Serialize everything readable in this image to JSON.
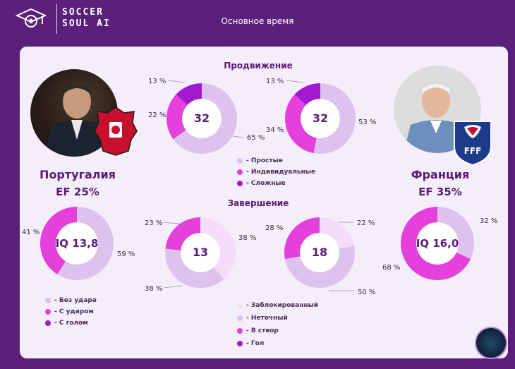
{
  "header": {
    "brand_line1": "SOCCER",
    "brand_line2": "SOUL AI",
    "title": "Основное время"
  },
  "teams": {
    "left": {
      "name": "Португалия",
      "ef_label": "EF",
      "ef_value": "25%"
    },
    "right": {
      "name": "Франция",
      "ef_label": "EF",
      "ef_value": "35%"
    }
  },
  "colors": {
    "light": "#ddc2ee",
    "medium": "#e340dc",
    "dark": "#a21ad0",
    "pale": "#f5dcf8",
    "text": "#5a1a7a"
  },
  "legends": {
    "progression": [
      "- Простые",
      "- Индивидуальные",
      "- Сложные"
    ],
    "shots": [
      "- Без удара",
      "- С ударом",
      "- С голом"
    ],
    "finishing": [
      "- Заблокированный",
      "- Неточный",
      "- В створ",
      "- Гол"
    ]
  },
  "chart_data": [
    {
      "type": "pie",
      "section": "Продвижение",
      "team": "Португалия",
      "center_label": "32",
      "categories": [
        "Простые",
        "Индивидуальные",
        "Сложные"
      ],
      "values": [
        65,
        22,
        13
      ],
      "value_labels": [
        "65 %",
        "22 %",
        "13 %"
      ]
    },
    {
      "type": "pie",
      "section": "Продвижение",
      "team": "Франция",
      "center_label": "32",
      "categories": [
        "Простые",
        "Индивидуальные",
        "Сложные"
      ],
      "values": [
        53,
        34,
        13
      ],
      "value_labels": [
        "53 %",
        "34 %",
        "13 %"
      ]
    },
    {
      "type": "pie",
      "team": "Португалия",
      "center_label": "IQ 13,8",
      "categories": [
        "Без удара",
        "С ударом"
      ],
      "values": [
        59,
        41
      ],
      "value_labels": [
        "59 %",
        "41 %"
      ]
    },
    {
      "type": "pie",
      "section": "Завершение",
      "team": "Португалия",
      "center_label": "13",
      "categories": [
        "Заблокированный",
        "Неточный",
        "В створ"
      ],
      "values": [
        38,
        38,
        23
      ],
      "value_labels": [
        "38 %",
        "38 %",
        "23 %"
      ]
    },
    {
      "type": "pie",
      "section": "Завершение",
      "team": "Франция",
      "center_label": "18",
      "categories": [
        "Заблокированный",
        "Неточный",
        "В створ"
      ],
      "values": [
        22,
        50,
        28
      ],
      "value_labels": [
        "22 %",
        "50 %",
        "28 %"
      ]
    },
    {
      "type": "pie",
      "team": "Франция",
      "center_label": "IQ 16,0",
      "categories": [
        "Без удара",
        "С ударом"
      ],
      "values": [
        32,
        68
      ],
      "value_labels": [
        "32 %",
        "68 %"
      ]
    }
  ],
  "sections": {
    "progression": "Продвижение",
    "finishing": "Завершение"
  },
  "fff_text": "FFF"
}
